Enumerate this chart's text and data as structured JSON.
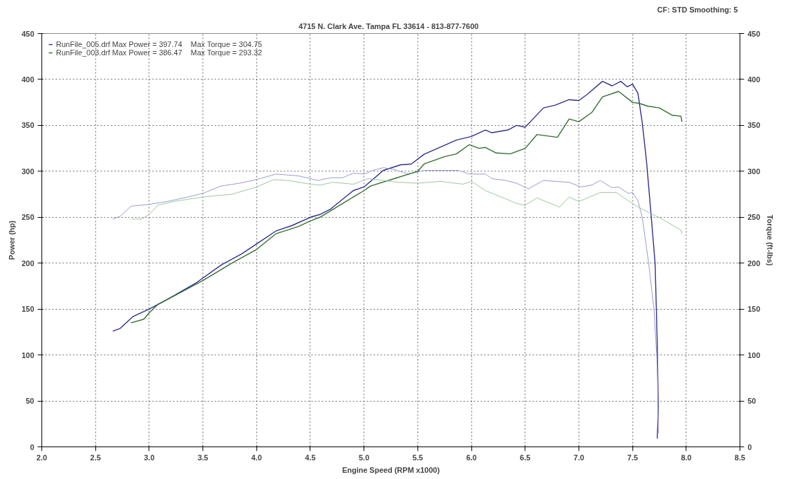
{
  "chart_data": {
    "type": "line",
    "subtitle": "4715 N. Clark Ave.   Tampa FL 33614 - 813-877-7600",
    "annotations": [
      "CF: STD  Smoothing: 5"
    ],
    "xlabel": "Engine Speed (RPM x1000)",
    "ylabel": "Power (hp)",
    "y2label": "Torque (ft-lbs)",
    "xlim": [
      2.0,
      8.5
    ],
    "xticks": [
      {
        "value": 2.0,
        "label": "2.0"
      },
      {
        "value": 2.5,
        "label": "2.5"
      },
      {
        "value": 3.0,
        "label": "3.0"
      },
      {
        "value": 3.5,
        "label": "3.5"
      },
      {
        "value": 4.0,
        "label": "4.0"
      },
      {
        "value": 4.5,
        "label": "4.5"
      },
      {
        "value": 5.0,
        "label": "5.0"
      },
      {
        "value": 5.5,
        "label": "5.5"
      },
      {
        "value": 6.0,
        "label": "6.0"
      },
      {
        "value": 6.5,
        "label": "6.5"
      },
      {
        "value": 7.0,
        "label": "7.0"
      },
      {
        "value": 7.5,
        "label": "7.5"
      },
      {
        "value": 8.0,
        "label": "8.0"
      },
      {
        "value": 8.5,
        "label": "8.5"
      }
    ],
    "ylim": [
      0,
      450
    ],
    "yticks": [
      0,
      50,
      100,
      150,
      200,
      250,
      300,
      350,
      400,
      450
    ],
    "y2lim": [
      0,
      450
    ],
    "y2ticks": [
      0,
      50,
      100,
      150,
      200,
      250,
      300,
      350,
      400,
      450
    ],
    "grid": true,
    "legend": "top left",
    "line_style": "solid",
    "marker": "none",
    "series": [
      {
        "name": "RunFile_005.drf Max Power = 397.74    Max Torque = 304.75",
        "color": "#2e2e8c",
        "x": [
          2.66,
          2.73,
          2.85,
          3.0,
          3.16,
          3.43,
          3.67,
          3.86,
          4.0,
          4.18,
          4.33,
          4.5,
          4.59,
          4.69,
          4.9,
          5.0,
          5.18,
          5.34,
          5.44,
          5.56,
          5.86,
          6.0,
          6.13,
          6.19,
          6.34,
          6.42,
          6.5,
          6.67,
          6.78,
          6.91,
          7.0,
          7.08,
          7.22,
          7.31,
          7.39,
          7.45,
          7.5,
          7.55,
          7.59,
          7.63,
          7.67,
          7.71,
          7.73,
          7.74,
          7.73
        ],
        "values": [
          126,
          129,
          142,
          150,
          160,
          178,
          198,
          210,
          221,
          235,
          241,
          250,
          253,
          259,
          279,
          283,
          301,
          307,
          308,
          318.6,
          334,
          338,
          345,
          342,
          345,
          350,
          348,
          369,
          372,
          378,
          377,
          384,
          398,
          393,
          398,
          392,
          395,
          385,
          353,
          311,
          256,
          200,
          112,
          40,
          9
        ]
      },
      {
        "color": "#9a9ad2",
        "axis": "y2",
        "x": [
          2.66,
          2.73,
          2.83,
          3.0,
          3.16,
          3.36,
          3.5,
          3.67,
          3.84,
          4.0,
          4.18,
          4.39,
          4.5,
          4.57,
          4.69,
          4.8,
          4.9,
          5.0,
          5.08,
          5.18,
          5.28,
          5.41,
          5.56,
          5.88,
          5.98,
          6.13,
          6.19,
          6.32,
          6.42,
          6.53,
          6.67,
          6.91,
          7.02,
          7.12,
          7.2,
          7.31,
          7.37,
          7.46,
          7.5,
          7.55,
          7.59,
          7.65,
          7.7,
          7.73,
          7.74
        ],
        "values": [
          248,
          251,
          262,
          264,
          267,
          272,
          276,
          284,
          287,
          291,
          297,
          295,
          292,
          290,
          293,
          293,
          298,
          297,
          301,
          304,
          302,
          297,
          301,
          301,
          297,
          297,
          292,
          290,
          287,
          281,
          290,
          288,
          283,
          285,
          290,
          282,
          283,
          276,
          277,
          268,
          250,
          200,
          149,
          88,
          15
        ]
      },
      {
        "name": "RunFile_003.drf Max Power = 386.47    Max Torque = 293.32",
        "color": "#2f6e2f",
        "x": [
          2.83,
          2.95,
          3.0,
          3.08,
          3.5,
          3.77,
          4.0,
          4.18,
          4.39,
          4.5,
          4.59,
          4.8,
          5.0,
          5.06,
          5.28,
          5.5,
          5.56,
          5.75,
          5.86,
          5.98,
          6.07,
          6.13,
          6.23,
          6.36,
          6.5,
          6.61,
          6.8,
          6.91,
          7.0,
          7.12,
          7.22,
          7.37,
          7.5,
          7.56,
          7.64,
          7.75,
          7.87,
          7.95,
          7.96
        ],
        "values": [
          135,
          139,
          146,
          155,
          181,
          200,
          215,
          232,
          240,
          246,
          250,
          265,
          279,
          284,
          292,
          300,
          308,
          316,
          319,
          329,
          325,
          326,
          320,
          319,
          325,
          340,
          337,
          357,
          354,
          364,
          381,
          387,
          375,
          374,
          371,
          369,
          361,
          360,
          354
        ]
      },
      {
        "color": "#9cc79c",
        "axis": "y2",
        "x": [
          2.83,
          2.93,
          3.0,
          3.08,
          3.22,
          3.5,
          3.77,
          4.0,
          4.16,
          4.29,
          4.5,
          4.59,
          4.71,
          4.9,
          5.04,
          5.18,
          5.32,
          5.5,
          5.71,
          5.92,
          6.0,
          6.13,
          6.32,
          6.42,
          6.5,
          6.61,
          6.82,
          6.91,
          7.0,
          7.1,
          7.2,
          7.35,
          7.46,
          7.54,
          7.67,
          7.76,
          7.92,
          7.95,
          7.96
        ],
        "values": [
          248,
          248,
          253,
          263,
          267,
          272,
          275,
          283,
          291,
          290,
          286,
          285,
          288,
          286,
          292,
          290,
          288,
          287,
          289,
          286,
          289,
          279,
          270,
          265,
          263,
          271,
          261,
          272,
          267,
          272,
          277,
          277,
          268,
          262,
          254,
          249,
          238,
          236,
          232
        ]
      }
    ]
  }
}
